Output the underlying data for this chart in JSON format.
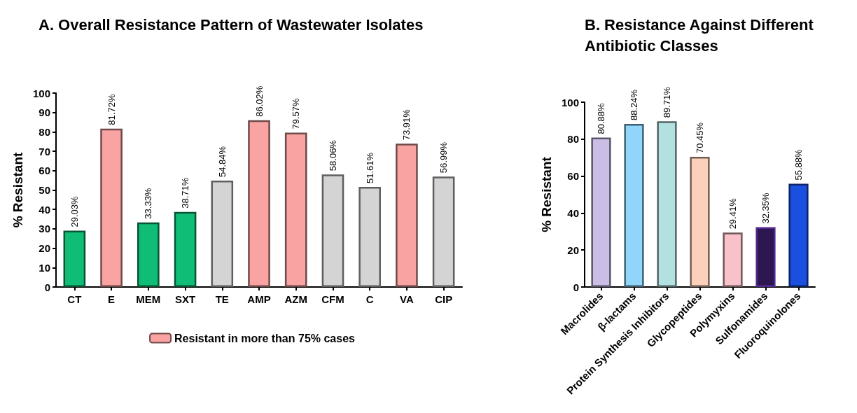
{
  "chart_data": [
    {
      "type": "bar",
      "title": "A. Overall Resistance Pattern of Wastewater Isolates",
      "ylabel": "% Resistant",
      "categories": [
        "CT",
        "E",
        "MEM",
        "SXT",
        "TE",
        "AMP",
        "AZM",
        "CFM",
        "C",
        "VA",
        "CIP"
      ],
      "stacked": true,
      "ylim": [
        0,
        100
      ],
      "yticks": [
        0,
        10,
        20,
        30,
        40,
        50,
        60,
        70,
        80,
        90,
        100
      ],
      "grid": false,
      "legend": "bottom",
      "series": [
        {
          "color": "#10bd76",
          "values": [
            29.03,
            null,
            33.33,
            38.71,
            null,
            null,
            null,
            null,
            null,
            null,
            null
          ],
          "value_labels": [
            "29.03%",
            null,
            "33.33%",
            "38.71%",
            null,
            null,
            null,
            null,
            null,
            null,
            null
          ]
        },
        {
          "name": "Resistant in more than 75% cases",
          "color": "#f9a3a3",
          "values": [
            null,
            81.72,
            null,
            null,
            null,
            86.02,
            79.57,
            null,
            null,
            73.91,
            null
          ],
          "value_labels": [
            null,
            "81.72%",
            null,
            null,
            null,
            "86.02%",
            "79.57%",
            null,
            null,
            "73.91%",
            null
          ]
        },
        {
          "color": "#d4d4d4",
          "values": [
            null,
            null,
            null,
            null,
            54.84,
            null,
            null,
            58.06,
            51.61,
            null,
            56.99
          ],
          "value_labels": [
            null,
            null,
            null,
            null,
            "54.84%",
            null,
            null,
            "58.06%",
            "51.61%",
            null,
            "56.99%"
          ]
        }
      ]
    },
    {
      "type": "bar",
      "title": "B. Resistance Against Different Antibiotic Classes",
      "ylabel": "% Resistant",
      "categories": [
        "Macrolides",
        "β-lactams",
        "Protein Synthesis Inhibitors",
        "Glycopeptides",
        "Polymyxins",
        "Sulfonamides",
        "Fluoroquinolones"
      ],
      "ylim": [
        0,
        100
      ],
      "yticks": [
        0,
        20,
        40,
        60,
        80,
        100
      ],
      "grid": false,
      "values": [
        80.88,
        88.24,
        89.71,
        70.45,
        29.41,
        32.35,
        55.88
      ],
      "colors": [
        "#cbbde6",
        "#8fd6fa",
        "#b3e0e0",
        "#fcd1bb",
        "#f9c1c9",
        "#2e1650",
        "#1a4fe0"
      ],
      "value_labels": [
        "80.88%",
        "88.24%",
        "89.71%",
        "70.45%",
        "29.41%",
        "32.35%",
        "55.88%"
      ]
    }
  ]
}
